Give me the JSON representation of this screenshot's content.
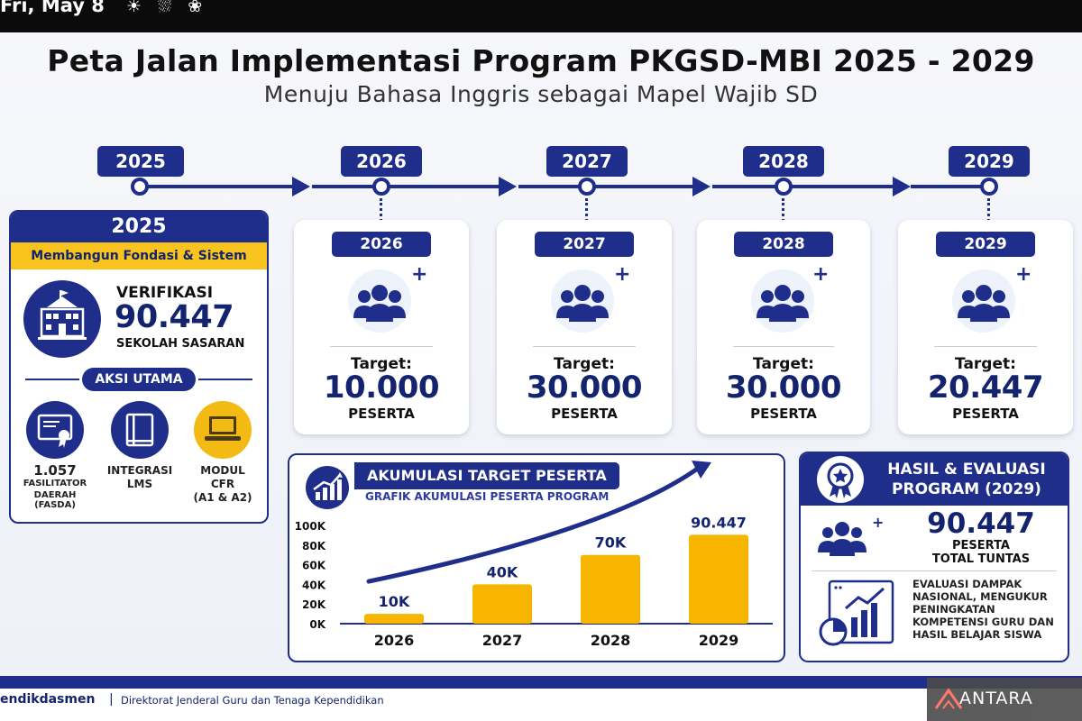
{
  "top_bar": {
    "date": "Fri, May 8",
    "weather_icons": "☀ ⛆ ❀"
  },
  "header": {
    "title": "Peta Jalan Implementasi Program PKGSD-MBI 2025 - 2029",
    "subtitle": "Menuju Bahasa Inggris sebagai Mapel Wajib SD"
  },
  "timeline": {
    "years": [
      "2025",
      "2026",
      "2027",
      "2028",
      "2029"
    ]
  },
  "phase_2025": {
    "year": "2025",
    "theme": "Membangun Fondasi & Sistem",
    "verification_label": "VERIFIKASI",
    "verification_value": "90.447",
    "verification_unit": "SEKOLAH SASARAN",
    "actions_title": "AKSI UTAMA",
    "actions": [
      {
        "icon": "certificate-icon",
        "value": "1.057",
        "lines": [
          "FASILITATOR",
          "DAERAH (FASDA)"
        ]
      },
      {
        "icon": "book-icon",
        "lines": [
          "INTEGRASI",
          "LMS"
        ]
      },
      {
        "icon": "laptop-icon",
        "lines": [
          "MODUL",
          "CFR",
          "(A1 & A2)"
        ]
      }
    ]
  },
  "target_cards": [
    {
      "year": "2026",
      "label": "Target:",
      "value": "10.000",
      "unit": "PESERTA"
    },
    {
      "year": "2027",
      "label": "Target:",
      "value": "30.000",
      "unit": "PESERTA"
    },
    {
      "year": "2028",
      "label": "Target:",
      "value": "30.000",
      "unit": "PESERTA"
    },
    {
      "year": "2029",
      "label": "Target:",
      "value": "20.447",
      "unit": "PESERTA"
    }
  ],
  "chart_data": {
    "type": "bar",
    "title": "AKUMULASI TARGET PESERTA",
    "subtitle": "GRAFIK AKUMULASI PESERTA PROGRAM",
    "categories": [
      "2026",
      "2027",
      "2028",
      "2029"
    ],
    "values": [
      10000,
      40000,
      70000,
      90447
    ],
    "data_labels": [
      "10K",
      "40K",
      "70K",
      "90.447"
    ],
    "yticks": [
      "0K",
      "20K",
      "40K",
      "60K",
      "80K",
      "100K"
    ],
    "ylim": [
      0,
      100000
    ],
    "xlabel": "",
    "ylabel": "",
    "grid": false,
    "bar_color": "#f7b500",
    "trend_arrow_color": "#1f2e8a"
  },
  "results_2029": {
    "title": "HASIL & EVALUASI PROGRAM (2029)",
    "value": "90.447",
    "label1": "PESERTA",
    "label2": "TOTAL TUNTAS",
    "evaluation": "EVALUASI DAMPAK NASIONAL, MENGUKUR PENINGKATAN KOMPETENSI GURU DAN HASIL BELAJAR SISWA"
  },
  "footer": {
    "brand": "endikdasmen",
    "separator": "|",
    "directorate": "Direktorat Jenderal Guru dan Tenaga Kependidikan"
  },
  "watermark": {
    "text": "ANTARA"
  },
  "colors": {
    "primary": "#1f2e8a",
    "accent": "#f7c31c",
    "text_dark": "#14236e"
  }
}
